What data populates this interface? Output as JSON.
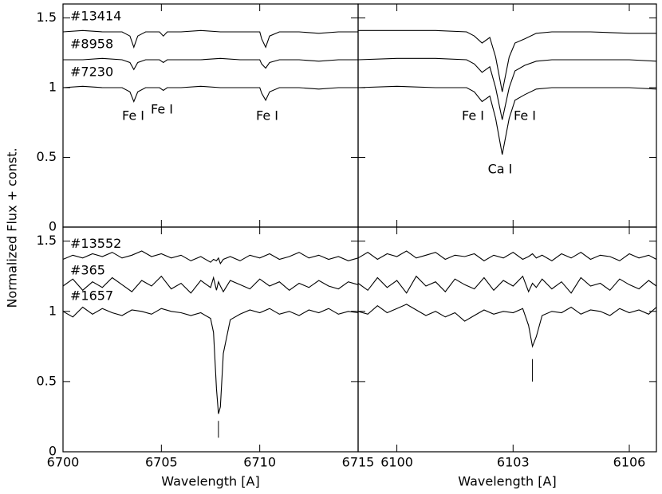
{
  "chart_data": [
    {
      "type": "line",
      "ylabel": "Normalized Flux + const.",
      "x": [
        6700,
        6701,
        6702,
        6703,
        6703.4,
        6703.6,
        6703.8,
        6704.2,
        6704.9,
        6705.1,
        6705.3,
        6706,
        6707,
        6708,
        6709,
        6710,
        6710.1,
        6710.3,
        6710.5,
        6711,
        6712,
        6713,
        6714,
        6715
      ],
      "series": [
        {
          "name": "#13414",
          "color": "#000000",
          "values": [
            1.4,
            1.41,
            1.4,
            1.4,
            1.37,
            1.29,
            1.37,
            1.4,
            1.4,
            1.37,
            1.4,
            1.4,
            1.41,
            1.4,
            1.4,
            1.4,
            1.35,
            1.29,
            1.37,
            1.4,
            1.4,
            1.39,
            1.4,
            1.4
          ]
        },
        {
          "name": "#8958",
          "color": "#000000",
          "values": [
            1.2,
            1.2,
            1.21,
            1.2,
            1.18,
            1.13,
            1.18,
            1.2,
            1.2,
            1.18,
            1.2,
            1.2,
            1.2,
            1.21,
            1.2,
            1.2,
            1.17,
            1.14,
            1.18,
            1.2,
            1.2,
            1.19,
            1.2,
            1.2
          ]
        },
        {
          "name": "#7230",
          "color": "#000000",
          "values": [
            1.0,
            1.01,
            1.0,
            1.0,
            0.97,
            0.9,
            0.97,
            1.0,
            1.0,
            0.98,
            1.0,
            1.0,
            1.01,
            1.0,
            1.0,
            1.0,
            0.96,
            0.91,
            0.97,
            1.0,
            1.0,
            0.99,
            1.0,
            1.0
          ]
        }
      ],
      "annotations": [
        "Fe I",
        "Fe I",
        "Fe I"
      ],
      "xlim": [
        6700,
        6715
      ],
      "xticks": [
        6700,
        6705,
        6710,
        6715
      ],
      "ylim": [
        0,
        1.6
      ],
      "yticks": [
        0,
        0.5,
        1,
        1.5
      ]
    },
    {
      "type": "line",
      "x": [
        6099,
        6100,
        6101,
        6101.8,
        6102.0,
        6102.2,
        6102.4,
        6102.55,
        6102.72,
        6102.9,
        6103.05,
        6103.3,
        6103.6,
        6104,
        6105,
        6106,
        6106.7
      ],
      "series": [
        {
          "color": "#000000",
          "values": [
            1.41,
            1.41,
            1.41,
            1.4,
            1.37,
            1.32,
            1.36,
            1.22,
            0.97,
            1.22,
            1.32,
            1.35,
            1.39,
            1.4,
            1.4,
            1.39,
            1.39
          ]
        },
        {
          "color": "#000000",
          "values": [
            1.2,
            1.21,
            1.21,
            1.2,
            1.17,
            1.11,
            1.15,
            1.0,
            0.77,
            1.0,
            1.12,
            1.16,
            1.19,
            1.2,
            1.2,
            1.2,
            1.19
          ]
        },
        {
          "color": "#000000",
          "values": [
            1.0,
            1.01,
            1.0,
            1.0,
            0.97,
            0.9,
            0.94,
            0.78,
            0.52,
            0.78,
            0.91,
            0.95,
            0.99,
            1.0,
            1.0,
            1.0,
            0.99
          ]
        }
      ],
      "annotations": [
        "Fe I",
        "Fe I",
        "Ca I"
      ],
      "xlim": [
        6099,
        6106.7
      ],
      "xticks": [
        6100,
        6103,
        6106
      ],
      "ylim": [
        0,
        1.6
      ],
      "yticks": [
        0,
        0.5,
        1,
        1.5
      ]
    },
    {
      "type": "line",
      "xlabel": "Wavelength [A]",
      "x": [
        6700,
        6700.5,
        6701,
        6701.5,
        6702,
        6702.5,
        6703,
        6703.5,
        6704,
        6704.5,
        6705,
        6705.5,
        6706,
        6706.5,
        6707,
        6707.5,
        6707.65,
        6707.8,
        6707.9,
        6708,
        6708.15,
        6708.5,
        6709,
        6709.5,
        6710,
        6710.5,
        6711,
        6711.5,
        6712,
        6712.5,
        6713,
        6713.5,
        6714,
        6714.5,
        6715
      ],
      "series": [
        {
          "name": "#13552",
          "color": "#000000",
          "values": [
            1.37,
            1.4,
            1.38,
            1.41,
            1.39,
            1.42,
            1.38,
            1.4,
            1.43,
            1.39,
            1.41,
            1.38,
            1.4,
            1.36,
            1.39,
            1.35,
            1.37,
            1.36,
            1.38,
            1.34,
            1.37,
            1.39,
            1.36,
            1.4,
            1.38,
            1.41,
            1.37,
            1.39,
            1.42,
            1.38,
            1.4,
            1.37,
            1.39,
            1.36,
            1.38
          ]
        },
        {
          "name": "#365",
          "color": "#000000",
          "values": [
            1.18,
            1.23,
            1.15,
            1.21,
            1.17,
            1.24,
            1.19,
            1.14,
            1.22,
            1.18,
            1.25,
            1.16,
            1.2,
            1.13,
            1.22,
            1.17,
            1.24,
            1.15,
            1.21,
            1.18,
            1.14,
            1.22,
            1.19,
            1.16,
            1.23,
            1.18,
            1.21,
            1.15,
            1.2,
            1.17,
            1.22,
            1.18,
            1.16,
            1.21,
            1.19
          ]
        },
        {
          "name": "#1657",
          "color": "#000000",
          "values": [
            1.0,
            0.96,
            1.03,
            0.98,
            1.02,
            0.99,
            0.97,
            1.01,
            1.0,
            0.98,
            1.02,
            1.0,
            0.99,
            0.97,
            0.99,
            0.95,
            0.85,
            0.45,
            0.27,
            0.32,
            0.7,
            0.94,
            0.98,
            1.01,
            0.99,
            1.02,
            0.98,
            1.0,
            0.97,
            1.01,
            0.99,
            1.02,
            0.98,
            1.0,
            0.99
          ]
        }
      ],
      "markers": [
        {
          "x": 6707.9,
          "y": [
            0.1,
            0.22
          ]
        }
      ],
      "xlim": [
        6700,
        6715
      ],
      "xticks": [
        6700,
        6705,
        6710,
        6715
      ],
      "ylim": [
        0,
        1.6
      ],
      "yticks": [
        0,
        0.5,
        1,
        1.5
      ]
    },
    {
      "type": "line",
      "xlabel": "Wavelength [A]",
      "x": [
        6099,
        6099.25,
        6099.5,
        6099.75,
        6100,
        6100.25,
        6100.5,
        6100.75,
        6101,
        6101.25,
        6101.5,
        6101.75,
        6102,
        6102.25,
        6102.5,
        6102.75,
        6103,
        6103.25,
        6103.4,
        6103.5,
        6103.6,
        6103.75,
        6104,
        6104.25,
        6104.5,
        6104.75,
        6105,
        6105.25,
        6105.5,
        6105.75,
        6106,
        6106.25,
        6106.5,
        6106.7
      ],
      "series": [
        {
          "color": "#000000",
          "values": [
            1.38,
            1.42,
            1.37,
            1.41,
            1.39,
            1.43,
            1.38,
            1.4,
            1.42,
            1.37,
            1.4,
            1.39,
            1.41,
            1.36,
            1.4,
            1.38,
            1.42,
            1.37,
            1.39,
            1.41,
            1.38,
            1.4,
            1.36,
            1.41,
            1.38,
            1.42,
            1.37,
            1.4,
            1.39,
            1.36,
            1.41,
            1.38,
            1.4,
            1.37
          ]
        },
        {
          "color": "#000000",
          "values": [
            1.2,
            1.15,
            1.24,
            1.17,
            1.22,
            1.13,
            1.25,
            1.18,
            1.21,
            1.14,
            1.23,
            1.19,
            1.16,
            1.24,
            1.15,
            1.22,
            1.18,
            1.25,
            1.14,
            1.2,
            1.17,
            1.23,
            1.16,
            1.21,
            1.13,
            1.24,
            1.18,
            1.2,
            1.15,
            1.23,
            1.19,
            1.16,
            1.22,
            1.18
          ]
        },
        {
          "color": "#000000",
          "values": [
            1.0,
            0.98,
            1.04,
            0.99,
            1.02,
            1.05,
            1.01,
            0.97,
            1.0,
            0.96,
            0.99,
            0.93,
            0.97,
            1.01,
            0.98,
            1.0,
            0.99,
            1.02,
            0.9,
            0.75,
            0.82,
            0.97,
            1.0,
            0.99,
            1.03,
            0.98,
            1.01,
            1.0,
            0.97,
            1.02,
            0.99,
            1.01,
            0.98,
            1.03
          ]
        }
      ],
      "markers": [
        {
          "x": 6103.5,
          "y": [
            0.5,
            0.66
          ]
        }
      ],
      "xlim": [
        6099,
        6106.7
      ],
      "xticks": [
        6100,
        6103,
        6106
      ],
      "ylim": [
        0,
        1.6
      ],
      "yticks": [
        0,
        0.5,
        1,
        1.5
      ]
    }
  ]
}
